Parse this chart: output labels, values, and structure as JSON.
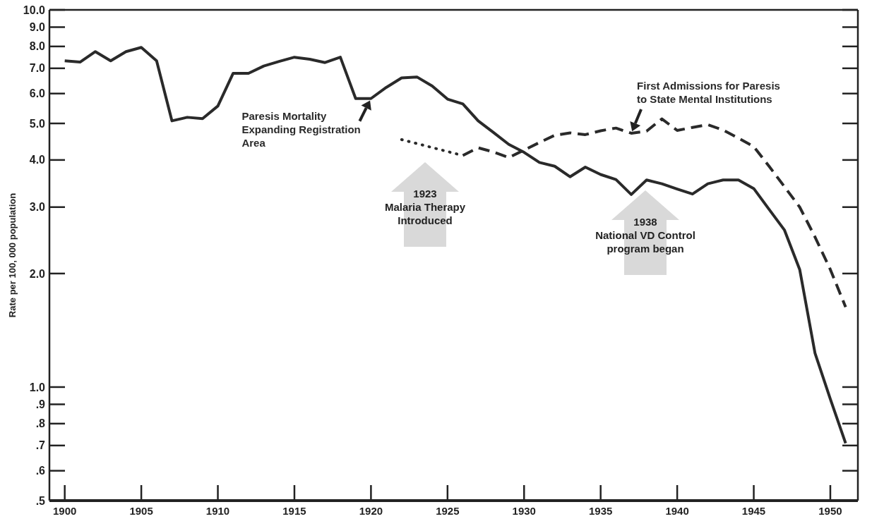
{
  "chart_data": {
    "type": "line",
    "ylabel": "Rate per 100, 000 population",
    "log": true,
    "xlim": [
      1899,
      1951.8
    ],
    "xticks": [
      1900,
      1905,
      1910,
      1915,
      1920,
      1925,
      1930,
      1935,
      1940,
      1945,
      1950
    ],
    "ylim": [
      0.5,
      10
    ],
    "yticks": [
      {
        "value": 10,
        "label": "10.0"
      },
      {
        "value": 9,
        "label": "9.0"
      },
      {
        "value": 8,
        "label": "8.0"
      },
      {
        "value": 7,
        "label": "7.0"
      },
      {
        "value": 6,
        "label": "6.0"
      },
      {
        "value": 5,
        "label": "5.0"
      },
      {
        "value": 4,
        "label": "4.0"
      },
      {
        "value": 3,
        "label": "3.0"
      },
      {
        "value": 2,
        "label": "2.0"
      },
      {
        "value": 1,
        "label": "1.0"
      },
      {
        "value": 0.9,
        "label": ".9"
      },
      {
        "value": 0.8,
        "label": ".8"
      },
      {
        "value": 0.7,
        "label": ".7"
      },
      {
        "value": 0.6,
        "label": ".6"
      },
      {
        "value": 0.5,
        "label": ".5"
      }
    ],
    "series": [
      {
        "name": "Paresis Mortality Expanding Registration Area",
        "color": "#2a2a2a",
        "line_style": "solid",
        "x": [
          1900,
          1901,
          1902,
          1903,
          1904,
          1905,
          1906,
          1907,
          1908,
          1909,
          1910,
          1911,
          1912,
          1913,
          1914,
          1915,
          1916,
          1917,
          1918,
          1919,
          1920,
          1921,
          1922,
          1923,
          1924,
          1925,
          1926,
          1927,
          1928,
          1929,
          1930,
          1931,
          1932,
          1933,
          1934,
          1935,
          1936,
          1937,
          1938,
          1939,
          1940,
          1941,
          1942,
          1943,
          1944,
          1945,
          1946,
          1947,
          1948,
          1949,
          1950,
          1951
        ],
        "values": [
          7.33,
          7.27,
          7.75,
          7.33,
          7.75,
          7.95,
          7.33,
          5.08,
          5.19,
          5.15,
          5.56,
          6.79,
          6.79,
          7.1,
          7.3,
          7.49,
          7.4,
          7.25,
          7.49,
          5.82,
          5.82,
          6.23,
          6.6,
          6.64,
          6.28,
          5.8,
          5.63,
          5.08,
          4.73,
          4.4,
          4.19,
          3.94,
          3.85,
          3.61,
          3.83,
          3.66,
          3.55,
          3.24,
          3.54,
          3.46,
          3.35,
          3.25,
          3.46,
          3.54,
          3.54,
          3.36,
          2.96,
          2.61,
          2.05,
          1.23,
          0.93,
          0.71
        ]
      },
      {
        "color": "#2a2a2a",
        "line_style": "dotted",
        "x": [
          1922,
          1926
        ],
        "values": [
          4.53,
          4.11
        ]
      },
      {
        "name": "First Admissions for Paresis to State Mental Institutions",
        "color": "#2a2a2a",
        "line_style": "dashed",
        "x": [
          1926,
          1927,
          1928,
          1929,
          1930,
          1931,
          1932,
          1933,
          1934,
          1935,
          1936,
          1937,
          1938,
          1939,
          1940,
          1941,
          1942,
          1943,
          1944,
          1945,
          1946,
          1947,
          1948,
          1949,
          1950,
          1951
        ],
        "values": [
          4.11,
          4.31,
          4.2,
          4.06,
          4.25,
          4.45,
          4.65,
          4.72,
          4.67,
          4.78,
          4.86,
          4.71,
          4.77,
          5.14,
          4.79,
          4.88,
          4.96,
          4.8,
          4.57,
          4.34,
          3.85,
          3.4,
          3.0,
          2.5,
          2.05,
          1.63
        ]
      }
    ],
    "annotations": [
      "1923\nMalaria Therapy\nIntroduced",
      "1938\nNational VD Control\nprogram began"
    ]
  }
}
